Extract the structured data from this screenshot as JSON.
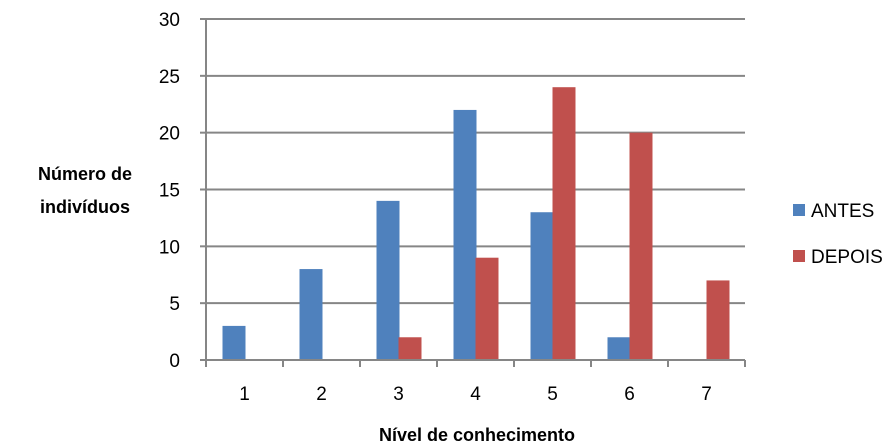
{
  "chart_data": {
    "type": "bar",
    "categories": [
      "1",
      "2",
      "3",
      "4",
      "5",
      "6",
      "7"
    ],
    "series": [
      {
        "name": "ANTES",
        "color": "#4F81BD",
        "values": [
          3,
          8,
          14,
          22,
          13,
          2,
          0
        ]
      },
      {
        "name": "DEPOIS",
        "color": "#C0504D",
        "values": [
          0,
          0,
          2,
          9,
          24,
          20,
          7
        ]
      }
    ],
    "ylabel_lines": [
      "Número de",
      "indivíduos"
    ],
    "xlabel": "Nível de conhecimento",
    "ylim": [
      0,
      30
    ],
    "yticks": [
      0,
      5,
      10,
      15,
      20,
      25,
      30
    ],
    "grid": true,
    "legend_position": "right"
  }
}
